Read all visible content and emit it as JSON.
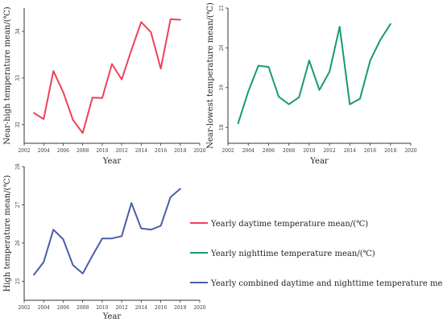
{
  "chart_data": [
    {
      "type": "line",
      "xlabel": "Year",
      "ylabel": "Near-high temperature mean/(℃)",
      "xlim": [
        2002,
        2020
      ],
      "ylim": [
        31.6,
        34.5
      ],
      "x_ticks": [
        "2002",
        "2004",
        "2006",
        "2008",
        "2010",
        "2012",
        "2014",
        "2016",
        "2018",
        "2020"
      ],
      "y_ticks": [
        "32",
        "33",
        "34"
      ],
      "y_tick_values": [
        32,
        33,
        34
      ],
      "series": [
        {
          "color": "#f0405a",
          "x": [
            2003,
            2004,
            2005,
            2006,
            2007,
            2008,
            2009,
            2010,
            2011,
            2012,
            2013,
            2014,
            2015,
            2016,
            2017,
            2018
          ],
          "y": [
            32.25,
            32.12,
            33.15,
            32.7,
            32.1,
            31.82,
            32.58,
            32.57,
            33.3,
            32.97,
            33.6,
            34.2,
            33.98,
            33.2,
            34.26,
            34.25
          ]
        }
      ]
    },
    {
      "type": "line",
      "xlabel": "Year",
      "ylabel": "Near-lowest temperature mean/(℃)",
      "xlim": [
        2002,
        2020
      ],
      "ylim": [
        17.6,
        21.0
      ],
      "x_ticks": [
        "2002",
        "2004",
        "2006",
        "2008",
        "2010",
        "2012",
        "2014",
        "2016",
        "2018",
        "2020"
      ],
      "y_ticks": [
        "18",
        "19",
        "20",
        "21"
      ],
      "y_tick_values": [
        18,
        19,
        20,
        21
      ],
      "series": [
        {
          "color": "#179a6e",
          "x": [
            2003,
            2004,
            2005,
            2006,
            2007,
            2008,
            2009,
            2010,
            2011,
            2012,
            2013,
            2014,
            2015,
            2016,
            2017,
            2018
          ],
          "y": [
            18.1,
            18.9,
            19.55,
            19.52,
            18.77,
            18.58,
            18.76,
            19.68,
            18.94,
            19.4,
            20.53,
            18.58,
            18.72,
            19.68,
            20.2,
            20.6
          ]
        }
      ]
    },
    {
      "type": "line",
      "xlabel": "Year",
      "ylabel": "High temperature mean/(℃)",
      "xlim": [
        2002,
        2020
      ],
      "ylim": [
        24.5,
        28.0
      ],
      "x_ticks": [
        "2002",
        "2004",
        "2006",
        "2008",
        "2010",
        "2012",
        "2014",
        "2016",
        "2018",
        "2020"
      ],
      "y_ticks": [
        "25",
        "26",
        "27",
        "28"
      ],
      "y_tick_values": [
        25,
        26,
        27,
        28
      ],
      "series": [
        {
          "color": "#4a5ea8",
          "x": [
            2003,
            2004,
            2005,
            2006,
            2007,
            2008,
            2009,
            2010,
            2011,
            2012,
            2013,
            2014,
            2015,
            2016,
            2017,
            2018
          ],
          "y": [
            25.17,
            25.5,
            26.35,
            26.1,
            25.42,
            25.2,
            25.67,
            26.12,
            26.12,
            26.18,
            27.05,
            26.38,
            26.35,
            26.45,
            27.2,
            27.42
          ]
        }
      ]
    }
  ],
  "legend": [
    {
      "label": "Yearly daytime temperature mean/(℃)",
      "color": "#f0405a"
    },
    {
      "label": "Yearly nighttime temperature mean/(℃)",
      "color": "#179a6e"
    },
    {
      "label": "Yearly combined daytime and nighttime temperature mean/(℃)",
      "color": "#4a5ea8"
    }
  ]
}
